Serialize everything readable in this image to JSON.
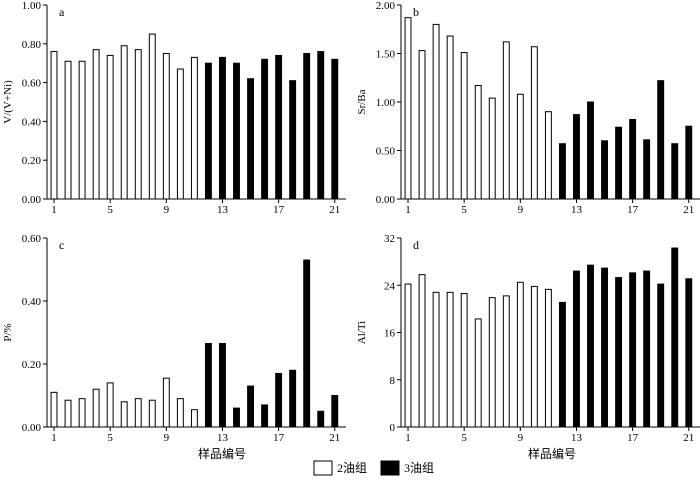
{
  "figure": {
    "xlabel": "样品编号",
    "legend": [
      {
        "label": "2油组",
        "fill": "#ffffff"
      },
      {
        "label": "3油组",
        "fill": "#000000"
      }
    ]
  },
  "chart_data": [
    {
      "type": "bar",
      "panel_label": "a",
      "ylabel": "V/(V+Ni)",
      "ylim": [
        0,
        1.0
      ],
      "yticks": [
        "0.00",
        "0.20",
        "0.40",
        "0.60",
        "0.80",
        "1.00"
      ],
      "xticks": [
        "1",
        "5",
        "9",
        "13",
        "17",
        "21"
      ],
      "categories": [
        1,
        2,
        3,
        4,
        5,
        6,
        7,
        8,
        9,
        10,
        11,
        12,
        13,
        14,
        15,
        16,
        17,
        18,
        19,
        20,
        21
      ],
      "values": [
        0.76,
        0.71,
        0.71,
        0.77,
        0.74,
        0.79,
        0.77,
        0.85,
        0.75,
        0.67,
        0.73,
        0.7,
        0.73,
        0.7,
        0.62,
        0.72,
        0.74,
        0.61,
        0.75,
        0.76,
        0.72
      ],
      "groups": [
        "2油组",
        "2油组",
        "2油组",
        "2油组",
        "2油组",
        "2油组",
        "2油组",
        "2油组",
        "2油组",
        "2油组",
        "2油组",
        "3油组",
        "3油组",
        "3油组",
        "3油组",
        "3油组",
        "3油组",
        "3油组",
        "3油组",
        "3油组",
        "3油组"
      ]
    },
    {
      "type": "bar",
      "panel_label": "b",
      "ylabel": "Sr/Ba",
      "ylim": [
        0,
        2.0
      ],
      "yticks": [
        "0.00",
        "0.50",
        "1.00",
        "1.50",
        "2.00"
      ],
      "xticks": [
        "1",
        "5",
        "9",
        "13",
        "17",
        "21"
      ],
      "categories": [
        1,
        2,
        3,
        4,
        5,
        6,
        7,
        8,
        9,
        10,
        11,
        12,
        13,
        14,
        15,
        16,
        17,
        18,
        19,
        20,
        21
      ],
      "values": [
        1.87,
        1.53,
        1.8,
        1.68,
        1.51,
        1.17,
        1.04,
        1.62,
        1.08,
        1.57,
        0.9,
        0.57,
        0.87,
        1.0,
        0.6,
        0.74,
        0.82,
        0.61,
        1.22,
        0.57,
        0.75
      ],
      "groups": [
        "2油组",
        "2油组",
        "2油组",
        "2油组",
        "2油组",
        "2油组",
        "2油组",
        "2油组",
        "2油组",
        "2油组",
        "2油组",
        "3油组",
        "3油组",
        "3油组",
        "3油组",
        "3油组",
        "3油组",
        "3油组",
        "3油组",
        "3油组",
        "3油组"
      ]
    },
    {
      "type": "bar",
      "panel_label": "c",
      "ylabel": "P/%",
      "ylim": [
        0,
        0.6
      ],
      "yticks": [
        "0.00",
        "0.20",
        "0.40",
        "0.60"
      ],
      "xticks": [
        "1",
        "5",
        "9",
        "13",
        "17",
        "21"
      ],
      "categories": [
        1,
        2,
        3,
        4,
        5,
        6,
        7,
        8,
        9,
        10,
        11,
        12,
        13,
        14,
        15,
        16,
        17,
        18,
        19,
        20,
        21
      ],
      "values": [
        0.11,
        0.085,
        0.09,
        0.12,
        0.14,
        0.08,
        0.09,
        0.085,
        0.155,
        0.09,
        0.055,
        0.265,
        0.265,
        0.06,
        0.13,
        0.07,
        0.17,
        0.18,
        0.53,
        0.05,
        0.1
      ],
      "groups": [
        "2油组",
        "2油组",
        "2油组",
        "2油组",
        "2油组",
        "2油组",
        "2油组",
        "2油组",
        "2油组",
        "2油组",
        "2油组",
        "3油组",
        "3油组",
        "3油组",
        "3油组",
        "3油组",
        "3油组",
        "3油组",
        "3油组",
        "3油组",
        "3油组"
      ]
    },
    {
      "type": "bar",
      "panel_label": "d",
      "ylabel": "Al/Ti",
      "ylim": [
        0,
        32
      ],
      "yticks": [
        "0",
        "8",
        "16",
        "24",
        "32"
      ],
      "xticks": [
        "1",
        "5",
        "9",
        "13",
        "17",
        "21"
      ],
      "categories": [
        1,
        2,
        3,
        4,
        5,
        6,
        7,
        8,
        9,
        10,
        11,
        12,
        13,
        14,
        15,
        16,
        17,
        18,
        19,
        20,
        21
      ],
      "values": [
        24.2,
        25.8,
        22.8,
        22.8,
        22.6,
        18.3,
        21.9,
        22.2,
        24.5,
        23.8,
        23.3,
        21.1,
        26.4,
        27.4,
        26.9,
        25.3,
        26.1,
        26.4,
        24.2,
        30.3,
        25.1
      ],
      "groups": [
        "2油组",
        "2油组",
        "2油组",
        "2油组",
        "2油组",
        "2油组",
        "2油组",
        "2油组",
        "2油组",
        "2油组",
        "2油组",
        "3油组",
        "3油组",
        "3油组",
        "3油组",
        "3油组",
        "3油组",
        "3油组",
        "3油组",
        "3油组",
        "3油组"
      ]
    }
  ]
}
